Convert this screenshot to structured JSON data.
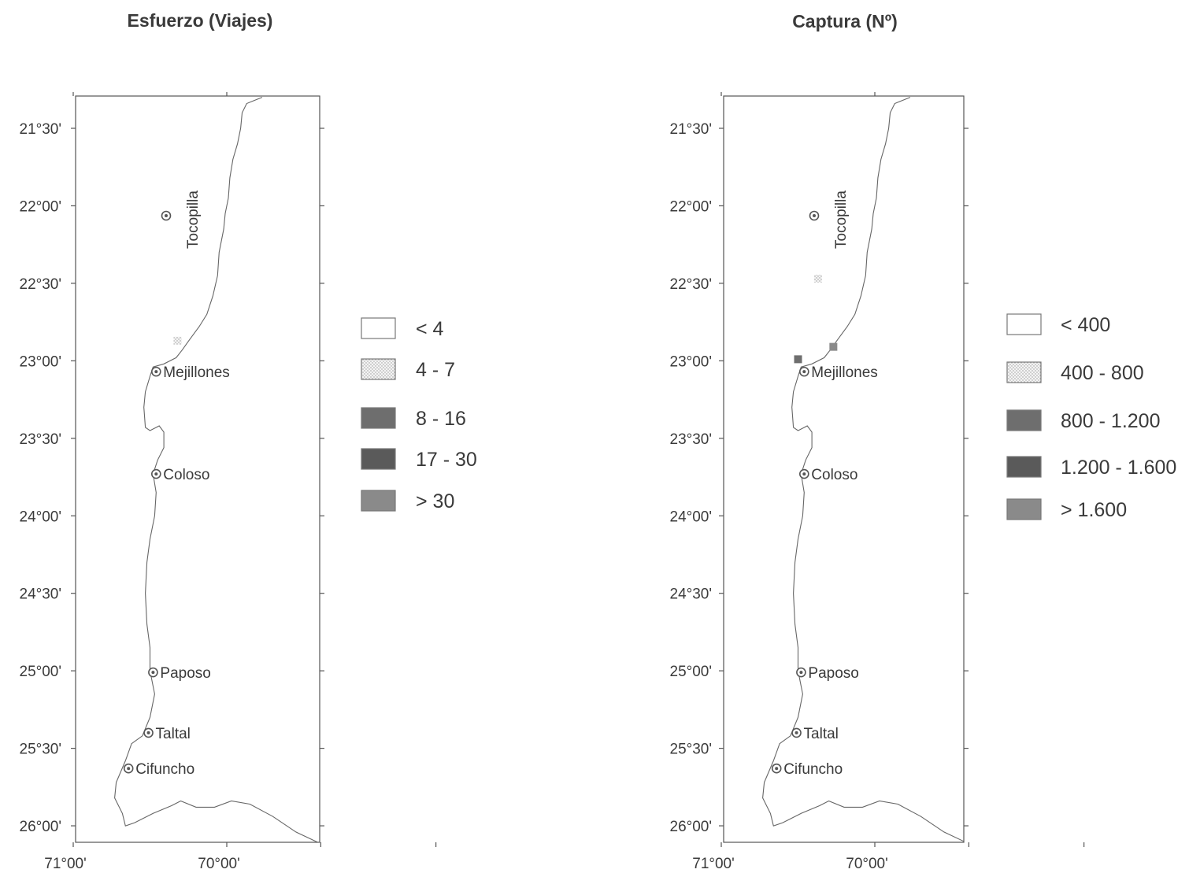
{
  "maps": [
    {
      "id": "esfuerzo",
      "title": "Esfuerzo (Viajes)",
      "legend": [
        {
          "label": "< 4",
          "color": "#ffffff"
        },
        {
          "label": "4 - 7",
          "color": "#ececec",
          "pattern": "dots"
        },
        {
          "label": "8 - 16",
          "color": "#6e6e6e"
        },
        {
          "label": "17 - 30",
          "color": "#5a5a5a"
        },
        {
          "label": "> 30",
          "color": "#8a8a8a"
        }
      ],
      "markers": [
        {
          "lon": -70.32,
          "lat": -22.87,
          "legend_class": 1
        }
      ]
    },
    {
      "id": "captura",
      "title": "Captura (Nº)",
      "legend": [
        {
          "label": "< 400",
          "color": "#ffffff"
        },
        {
          "label": "400 -  800",
          "color": "#ececec",
          "pattern": "dots"
        },
        {
          "label": "800 - 1.200",
          "color": "#6e6e6e"
        },
        {
          "label": "1.200 - 1.600",
          "color": "#5a5a5a"
        },
        {
          "label": "> 1.600",
          "color": "#8a8a8a"
        }
      ],
      "markers": [
        {
          "lon": -70.37,
          "lat": -22.47,
          "legend_class": 1
        },
        {
          "lon": -70.27,
          "lat": -22.91,
          "legend_class": 4
        },
        {
          "lon": -70.5,
          "lat": -22.99,
          "legend_class": 2
        }
      ]
    }
  ],
  "lat_ticks": [
    "21°30'",
    "22°00'",
    "22°30'",
    "23°00'",
    "23°30'",
    "24°00'",
    "24°30'",
    "25°00'",
    "25°30'",
    "26°00'"
  ],
  "lon_ticks": [
    "71°00'",
    "70°00'"
  ],
  "towns": [
    {
      "name": "Tocopilla",
      "lat": -22.08,
      "lon": -70.2,
      "orientation": "vertical"
    },
    {
      "name": "Mejillones",
      "lat": -23.07,
      "lon": -70.46
    },
    {
      "name": "Coloso",
      "lat": -23.73,
      "lon": -70.46
    },
    {
      "name": "Paposo",
      "lat": -25.01,
      "lon": -70.48
    },
    {
      "name": "Taltal",
      "lat": -25.4,
      "lon": -70.51
    },
    {
      "name": "Cifuncho",
      "lat": -25.63,
      "lon": -70.64
    }
  ]
}
